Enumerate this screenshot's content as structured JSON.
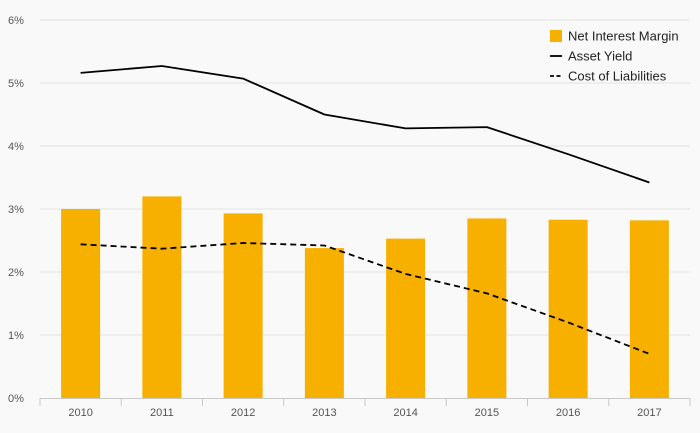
{
  "chart_data": {
    "type": "bar",
    "categories": [
      "2010",
      "2011",
      "2012",
      "2013",
      "2014",
      "2015",
      "2016",
      "2017"
    ],
    "series": [
      {
        "name": "Net Interest Margin",
        "kind": "bar",
        "color": "#f7b000",
        "values": [
          3.0,
          3.2,
          2.93,
          2.38,
          2.53,
          2.85,
          2.83,
          2.82
        ]
      },
      {
        "name": "Asset Yield",
        "kind": "line",
        "style": "solid",
        "color": "#000000",
        "values": [
          5.16,
          5.27,
          5.07,
          4.5,
          4.28,
          4.3,
          3.87,
          3.42
        ]
      },
      {
        "name": "Cost of Liabilities",
        "kind": "line",
        "style": "dashed",
        "color": "#000000",
        "values": [
          2.44,
          2.37,
          2.46,
          2.42,
          1.97,
          1.66,
          1.2,
          0.7
        ]
      }
    ],
    "ylim": [
      0,
      6
    ],
    "yticks": [
      "0%",
      "1%",
      "2%",
      "3%",
      "4%",
      "5%",
      "6%"
    ],
    "title": "",
    "xlabel": "",
    "ylabel": "",
    "grid": true,
    "legend_position": "top-right"
  }
}
